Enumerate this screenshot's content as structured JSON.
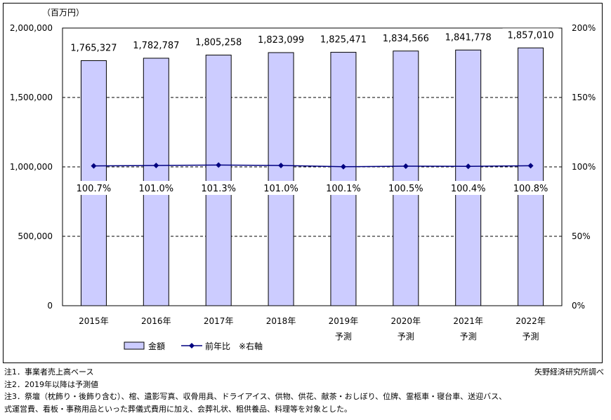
{
  "chart_data": {
    "type": "bar",
    "unit_label": "（百万円）",
    "categories": [
      "2015年",
      "2016年",
      "2017年",
      "2018年",
      "2019年",
      "2020年",
      "2021年",
      "2022年"
    ],
    "category_sublabels": [
      "",
      "",
      "",
      "",
      "予測",
      "予測",
      "予測",
      "予測"
    ],
    "series": [
      {
        "name": "金額",
        "type": "bar",
        "axis": "left",
        "color": "#ccccff",
        "values": [
          1765327,
          1782787,
          1805258,
          1823099,
          1825471,
          1834566,
          1841778,
          1857010
        ],
        "labels": [
          "1,765,327",
          "1,782,787",
          "1,805,258",
          "1,823,099",
          "1,825,471",
          "1,834,566",
          "1,841,778",
          "1,857,010"
        ]
      },
      {
        "name": "前年比",
        "type": "line",
        "axis": "right",
        "color": "#000080",
        "values": [
          100.7,
          101.0,
          101.3,
          101.0,
          100.1,
          100.5,
          100.4,
          100.8
        ],
        "labels": [
          "100.7%",
          "101.0%",
          "101.3%",
          "101.0%",
          "100.1%",
          "100.5%",
          "100.4%",
          "100.8%"
        ]
      }
    ],
    "y_left": {
      "min": 0,
      "max": 2000000,
      "ticks": [
        0,
        500000,
        1000000,
        1500000,
        2000000
      ],
      "tick_labels": [
        "0",
        "500,000",
        "1,000,000",
        "1,500,000",
        "2,000,000"
      ]
    },
    "y_right": {
      "min": 0,
      "max": 200,
      "ticks": [
        0,
        50,
        100,
        150,
        200
      ],
      "tick_labels": [
        "0%",
        "50%",
        "100%",
        "150%",
        "200%"
      ]
    },
    "grid": "horizontal dashed",
    "legend": {
      "position": "bottom-left",
      "items": [
        "金額",
        "前年比"
      ],
      "note": "※右軸"
    }
  },
  "notes": [
    "注1．事業者売上高ベース",
    "注2．2019年以降は予測値",
    "注3．祭壇（枕飾り・後飾り含む）、棺、遺影写真、収骨用具、ドライアイス、供物、供花、献茶・おしぼり、位牌、霊柩車・寝台車、送迎バス、",
    "式運営費、看板・事務用品といった葬儀式費用に加え、会葬礼状、粗供養品、料理等を対象とした。"
  ],
  "source": "矢野経済研究所調べ"
}
